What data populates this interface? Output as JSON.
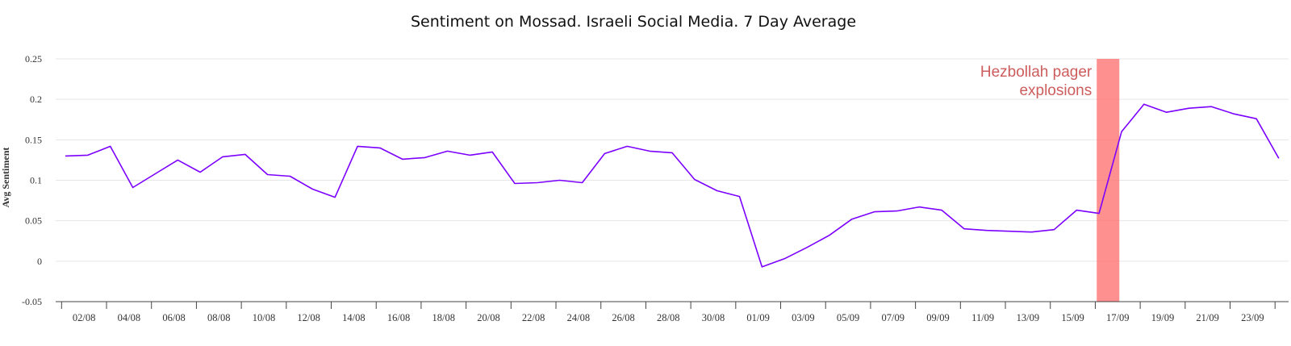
{
  "chart_data": {
    "type": "line",
    "title": "Sentiment on Mossad. Israeli Social Media. 7 Day Average",
    "xlabel": "",
    "ylabel": "Avg Sentiment",
    "ylim": [
      -0.05,
      0.25
    ],
    "yticks": [
      "-0.05",
      "0",
      "0.05",
      "0.1",
      "0.15",
      "0.2",
      "0.25"
    ],
    "grid": true,
    "x_tick_labels": [
      "02/08",
      "04/08",
      "06/08",
      "08/08",
      "10/08",
      "12/08",
      "14/08",
      "16/08",
      "18/08",
      "20/08",
      "22/08",
      "24/08",
      "26/08",
      "28/08",
      "30/08",
      "01/09",
      "03/09",
      "05/09",
      "07/09",
      "09/09",
      "11/09",
      "13/09",
      "15/09",
      "17/09",
      "19/09",
      "21/09",
      "23/09"
    ],
    "x": [
      "01/08",
      "02/08",
      "03/08",
      "04/08",
      "05/08",
      "06/08",
      "07/08",
      "08/08",
      "09/08",
      "10/08",
      "11/08",
      "12/08",
      "13/08",
      "14/08",
      "15/08",
      "16/08",
      "17/08",
      "18/08",
      "19/08",
      "20/08",
      "21/08",
      "22/08",
      "23/08",
      "24/08",
      "25/08",
      "26/08",
      "27/08",
      "28/08",
      "29/08",
      "30/08",
      "31/08",
      "01/09",
      "02/09",
      "03/09",
      "04/09",
      "05/09",
      "06/09",
      "07/09",
      "08/09",
      "09/09",
      "10/09",
      "11/09",
      "12/09",
      "13/09",
      "14/09",
      "15/09",
      "16/09",
      "17/09",
      "18/09",
      "19/09",
      "20/09",
      "21/09",
      "22/09",
      "23/09",
      "24/09"
    ],
    "series": [
      {
        "color": "#7b00ff",
        "values": [
          0.13,
          0.131,
          0.142,
          0.091,
          0.108,
          0.125,
          0.11,
          0.129,
          0.132,
          0.107,
          0.105,
          0.089,
          0.079,
          0.142,
          0.14,
          0.126,
          0.128,
          0.136,
          0.131,
          0.135,
          0.096,
          0.097,
          0.1,
          0.097,
          0.133,
          0.142,
          0.136,
          0.134,
          0.101,
          0.087,
          0.08,
          -0.007,
          0.003,
          0.017,
          0.032,
          0.052,
          0.061,
          0.062,
          0.067,
          0.063,
          0.04,
          0.038,
          0.037,
          0.036,
          0.039,
          0.063,
          0.059,
          0.16,
          0.194,
          0.184,
          0.189,
          0.191,
          0.182,
          0.176,
          0.127
        ]
      }
    ],
    "annotations": [
      {
        "text_lines": [
          "Hezbollah pager",
          "explosions"
        ],
        "band_center": 46.4,
        "color": "#ff6b6b",
        "text_color": "#cd5c5c"
      }
    ]
  }
}
